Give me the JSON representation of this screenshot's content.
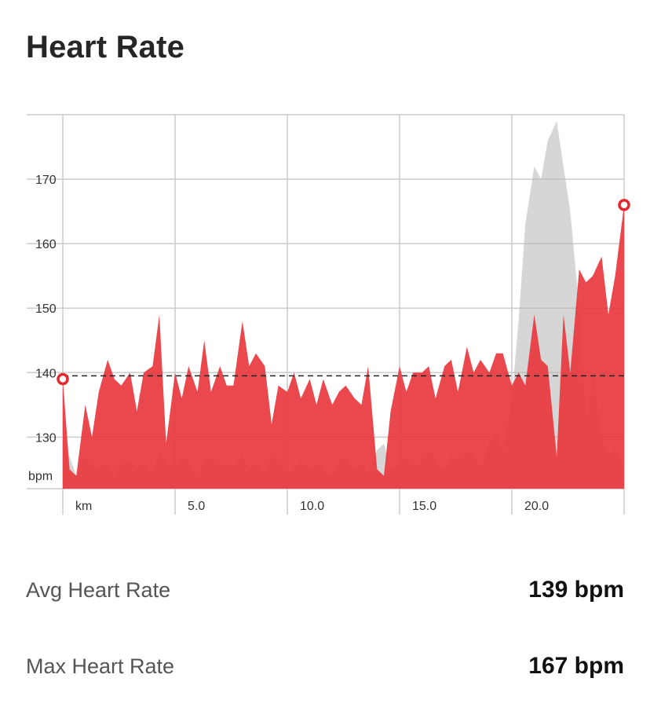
{
  "page": {
    "title": "Heart Rate"
  },
  "stats": [
    {
      "label": "Avg Heart Rate",
      "value": "139 bpm"
    },
    {
      "label": "Max Heart Rate",
      "value": "167 bpm"
    }
  ],
  "colors": {
    "main": "#e2282e",
    "main_fill": "#e8383d",
    "comparison": "#b4b4b4",
    "grid": "#cccccc",
    "avg_line": "#222222"
  },
  "chart_data": {
    "type": "area",
    "y_unit_label": "bpm",
    "x_unit_label": "km",
    "ylim": [
      122,
      180
    ],
    "xlim": [
      0,
      25
    ],
    "yticks": [
      {
        "value": 130,
        "label": "130"
      },
      {
        "value": 140,
        "label": "140"
      },
      {
        "value": 150,
        "label": "150"
      },
      {
        "value": 160,
        "label": "160"
      },
      {
        "value": 170,
        "label": "170"
      }
    ],
    "xticks": [
      {
        "value": 5,
        "label": "5.0"
      },
      {
        "value": 10,
        "label": "10.0"
      },
      {
        "value": 15,
        "label": "15.0"
      },
      {
        "value": 20,
        "label": "20.0"
      }
    ],
    "grid": true,
    "average_line": {
      "value": 139.5
    },
    "start_marker": {
      "x": 0,
      "y": 139
    },
    "end_marker": {
      "x": 25,
      "y": 166
    },
    "series": [
      {
        "role": "comparison",
        "x": [
          0,
          0.3,
          0.6,
          1,
          1.3,
          1.6,
          2,
          2.3,
          2.6,
          3,
          3.3,
          3.6,
          4,
          4.3,
          4.6,
          5,
          5.3,
          5.6,
          6,
          6.3,
          6.6,
          7,
          7.3,
          7.6,
          8,
          8.3,
          8.6,
          9,
          9.3,
          9.6,
          10,
          10.3,
          10.6,
          11,
          11.3,
          11.6,
          12,
          12.3,
          12.6,
          13,
          13.3,
          13.6,
          14,
          14.3,
          14.6,
          15,
          15.3,
          15.6,
          16,
          16.3,
          16.6,
          17,
          17.3,
          17.6,
          18,
          18.3,
          18.6,
          19,
          19.3,
          19.6,
          20,
          20.3,
          20.6,
          21,
          21.3,
          21.6,
          22,
          22.3,
          22.6,
          23,
          23.3,
          23.6,
          24,
          24.3,
          24.6,
          25
        ],
        "values": [
          128,
          127,
          124,
          127,
          126,
          125,
          126,
          123,
          127,
          126,
          125,
          126,
          124,
          128,
          126,
          125,
          127,
          126,
          124,
          126,
          127,
          125,
          126,
          125,
          127,
          125,
          126,
          124,
          128,
          126,
          124,
          125,
          126,
          125,
          126,
          125,
          124,
          126,
          127,
          125,
          126,
          124,
          128,
          129,
          125,
          126,
          127,
          125,
          126,
          128,
          126,
          125,
          127,
          126,
          128,
          127,
          125,
          129,
          131,
          128,
          136,
          148,
          163,
          172,
          170,
          176,
          179,
          172,
          165,
          150,
          132,
          140,
          130,
          127,
          128,
          125
        ]
      },
      {
        "role": "main",
        "x": [
          0,
          0.3,
          0.6,
          1,
          1.3,
          1.6,
          2,
          2.3,
          2.6,
          3,
          3.3,
          3.6,
          4,
          4.3,
          4.6,
          5,
          5.3,
          5.6,
          6,
          6.3,
          6.6,
          7,
          7.3,
          7.6,
          8,
          8.3,
          8.6,
          9,
          9.3,
          9.6,
          10,
          10.3,
          10.6,
          11,
          11.3,
          11.6,
          12,
          12.3,
          12.6,
          13,
          13.3,
          13.6,
          14,
          14.3,
          14.6,
          15,
          15.3,
          15.6,
          16,
          16.3,
          16.6,
          17,
          17.3,
          17.6,
          18,
          18.3,
          18.6,
          19,
          19.3,
          19.6,
          20,
          20.3,
          20.6,
          21,
          21.3,
          21.6,
          22,
          22.3,
          22.6,
          23,
          23.3,
          23.6,
          24,
          24.3,
          24.6,
          25
        ],
        "values": [
          139,
          125,
          124,
          135,
          130,
          137,
          142,
          139,
          138,
          140,
          134,
          140,
          141,
          149,
          129,
          140,
          136,
          141,
          137,
          145,
          137,
          141,
          138,
          138,
          148,
          141,
          143,
          141,
          132,
          138,
          137,
          140,
          136,
          139,
          135,
          139,
          135,
          137,
          138,
          136,
          135,
          141,
          125,
          124,
          134,
          141,
          137,
          140,
          140,
          141,
          136,
          141,
          142,
          137,
          144,
          140,
          142,
          140,
          143,
          143,
          138,
          140,
          138,
          149,
          142,
          141,
          127,
          149,
          140,
          156,
          154,
          155,
          158,
          149,
          155,
          166
        ]
      }
    ]
  }
}
